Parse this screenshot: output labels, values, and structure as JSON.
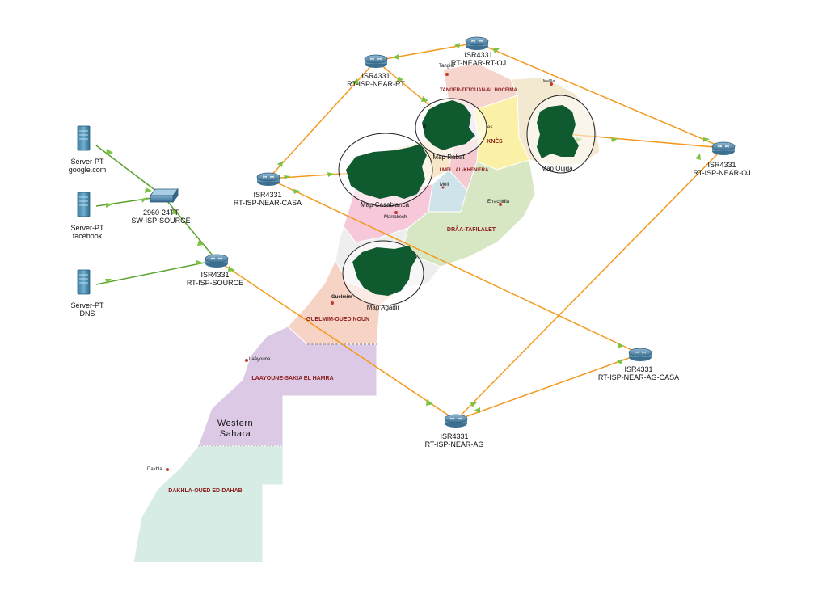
{
  "devices": {
    "server_google": {
      "type": "Server-PT",
      "name": "google.com"
    },
    "server_facebook": {
      "type": "Server-PT",
      "name": "facebook"
    },
    "server_dns": {
      "type": "Server-PT",
      "name": "DNS"
    },
    "sw_source": {
      "type": "2960-24TT",
      "name": "SW-ISP-SOURCE"
    },
    "rt_source": {
      "type": "ISR4331",
      "name": "RT-ISP-SOURCE"
    },
    "rt_casa": {
      "type": "ISR4331",
      "name": "RT-ISP-NEAR-CASA"
    },
    "rt_rt": {
      "type": "ISR4331",
      "name": "RT-ISP-NEAR-RT"
    },
    "rt_rt_oj": {
      "type": "ISR4331",
      "name": "RT-NEAR-RT-OJ"
    },
    "rt_oj": {
      "type": "ISR4331",
      "name": "RT-ISP-NEAR-OJ"
    },
    "rt_ag_casa": {
      "type": "ISR4331",
      "name": "RT-ISP-NEAR-AG-CASA"
    },
    "rt_ag": {
      "type": "ISR4331",
      "name": "RT-ISP-NEAR-AG"
    }
  },
  "map_clusters": {
    "rabat": "Map Rabat",
    "casablanca": "Map Casablanca",
    "oujda": "Map Oujda",
    "agadir": "Map Agadir"
  },
  "regions": {
    "tanger": "TANGER-TETOUAN-AL HOCEIMA",
    "meknes": "KNÈS",
    "beni": "I MELLAL-KHENIFRA",
    "draa": "DRÂA-TAFILALET",
    "guelmim": "GUELMIM-OUED NOUN",
    "laayoune": "LAAYOUNE-SAKIA EL HAMRA",
    "western_sahara": "Western Sahara",
    "dakhla": "DAKHLA-OUED ED-DAHAB"
  },
  "cities": {
    "tangier": "Tangier",
    "melilla": "Melilla",
    "marrakech": "Marrakech",
    "errachidia": "Errachidia",
    "guelmim": "Guelmim",
    "laayoune": "Laâyoune",
    "dakhla": "Dakhla",
    "rabat_partial": "R",
    "fes_partial": "es",
    "melli": "Melli"
  },
  "colors": {
    "link_orange": "#f39a1e",
    "link_green": "#5aa02c",
    "arrow_green": "#7dc242",
    "cluster_green": "#0f5a2e",
    "router_blue": "#5a8fb0",
    "region_text": "#8a1b1b"
  }
}
